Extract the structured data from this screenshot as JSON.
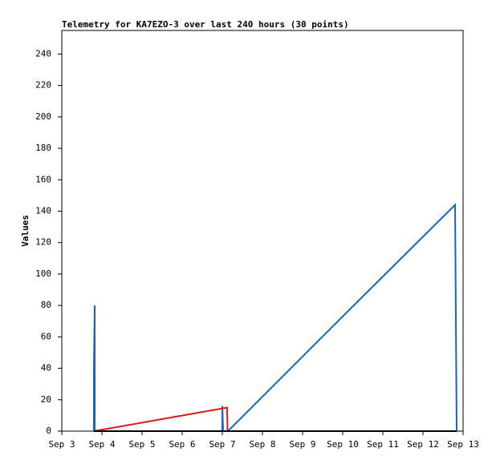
{
  "chart_data": {
    "type": "line",
    "title": "Telemetry for KA7EZO-3 over last 240 hours (30 points)",
    "y_label": "Values",
    "xlim": [
      3,
      13
    ],
    "xticks": [
      {
        "value": 3,
        "label": "Sep 3"
      },
      {
        "value": 4,
        "label": "Sep 4"
      },
      {
        "value": 5,
        "label": "Sep 5"
      },
      {
        "value": 6,
        "label": "Sep 6"
      },
      {
        "value": 7,
        "label": "Sep 7"
      },
      {
        "value": 8,
        "label": "Sep 8"
      },
      {
        "value": 9,
        "label": "Sep 9"
      },
      {
        "value": 10,
        "label": "Sep 10"
      },
      {
        "value": 11,
        "label": "Sep 11"
      },
      {
        "value": 12,
        "label": "Sep 12"
      },
      {
        "value": 13,
        "label": "Sep 13"
      }
    ],
    "ylim": [
      0,
      255
    ],
    "yticks": [
      0,
      20,
      40,
      60,
      80,
      100,
      120,
      140,
      160,
      180,
      200,
      220,
      240
    ],
    "grid": false,
    "series": [
      {
        "color": "#1565c0",
        "x": [
          3.8,
          3.8,
          3.82,
          3.82,
          7.0,
          7.0,
          7.02,
          7.14,
          9.96,
          12.8,
          12.82,
          12.84
        ],
        "values": [
          0,
          40,
          80,
          0,
          0,
          16,
          0,
          0,
          72,
          144,
          72,
          0
        ]
      },
      {
        "color": "#d81b1b",
        "x": [
          3.8,
          7.12,
          7.13
        ],
        "values": [
          0,
          15,
          0
        ]
      },
      {
        "color": "#000000",
        "x": [
          3.8,
          12.84
        ],
        "values": [
          0,
          0
        ]
      }
    ]
  }
}
